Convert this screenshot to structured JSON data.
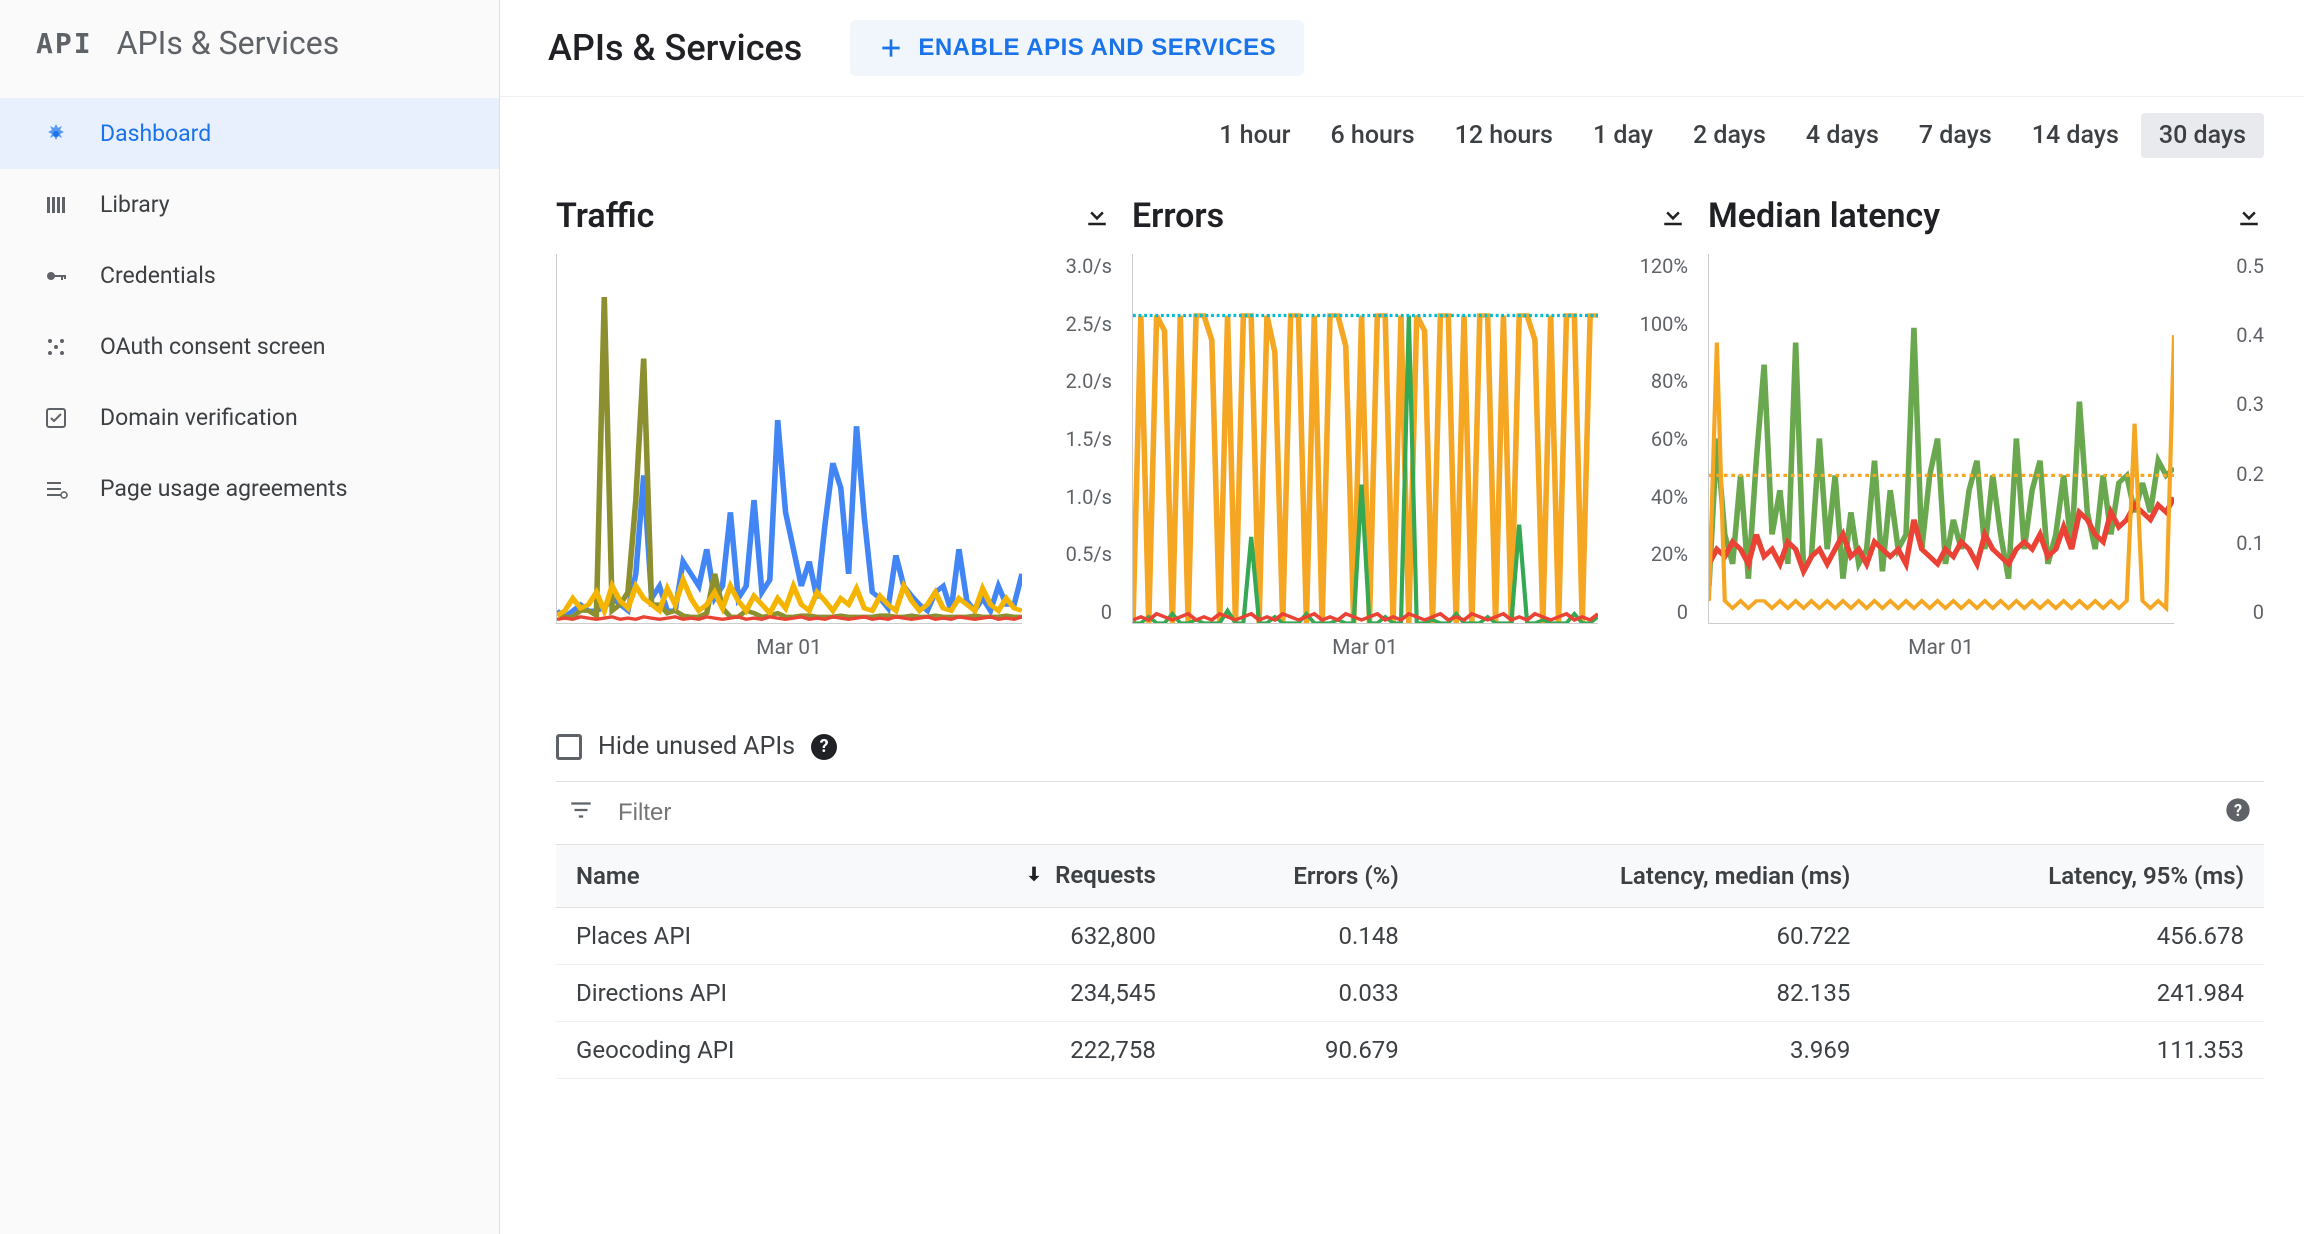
{
  "sidebar": {
    "logo_text": "API",
    "header_title": "APIs & Services",
    "items": [
      {
        "label": "Dashboard",
        "icon": "dashboard",
        "active": true
      },
      {
        "label": "Library",
        "icon": "library",
        "active": false
      },
      {
        "label": "Credentials",
        "icon": "key",
        "active": false
      },
      {
        "label": "OAuth consent screen",
        "icon": "consent",
        "active": false
      },
      {
        "label": "Domain verification",
        "icon": "check",
        "active": false
      },
      {
        "label": "Page usage agreements",
        "icon": "settings",
        "active": false
      }
    ]
  },
  "header": {
    "title": "APIs & Services",
    "enable_button": "ENABLE APIS AND SERVICES"
  },
  "time_ranges": {
    "options": [
      "1 hour",
      "6 hours",
      "12 hours",
      "1 day",
      "2 days",
      "4 days",
      "7 days",
      "14 days",
      "30 days"
    ],
    "selected": "30 days"
  },
  "charts": {
    "xlabel": "Mar 01",
    "traffic": {
      "title": "Traffic",
      "type": "line",
      "y_ticks": [
        "3.0/s",
        "2.5/s",
        "2.0/s",
        "1.5/s",
        "1.0/s",
        "0.5/s",
        "0"
      ],
      "y_max": 3.0,
      "series": [
        {
          "name": "blue",
          "color": "#4285f4",
          "stroke_width": 2,
          "values": [
            0.1,
            0.05,
            0.1,
            0.15,
            0.1,
            0.1,
            0.12,
            0.2,
            0.15,
            0.1,
            0.4,
            1.2,
            0.2,
            0.3,
            0.1,
            0.1,
            0.5,
            0.4,
            0.3,
            0.6,
            0.2,
            0.3,
            0.9,
            0.2,
            0.3,
            1.0,
            0.25,
            0.35,
            1.65,
            0.9,
            0.6,
            0.3,
            0.5,
            0.2,
            0.8,
            1.3,
            1.1,
            0.4,
            1.6,
            0.85,
            0.25,
            0.2,
            0.12,
            0.55,
            0.3,
            0.22,
            0.15,
            0.1,
            0.25,
            0.3,
            0.1,
            0.6,
            0.18,
            0.1,
            0.2,
            0.1,
            0.3,
            0.15,
            0.15,
            0.4
          ]
        },
        {
          "name": "olive",
          "color": "#8b8f2f",
          "stroke_width": 2,
          "values": [
            0.08,
            0.05,
            0.05,
            0.1,
            0.1,
            0.06,
            2.65,
            0.1,
            0.15,
            0.25,
            1.0,
            2.15,
            0.15,
            0.15,
            0.08,
            0.1,
            0.06,
            0.05,
            0.05,
            0.08,
            0.4,
            0.12,
            0.05,
            0.05,
            0.1,
            0.08,
            0.05,
            0.06,
            0.08,
            0.05,
            0.05,
            0.06,
            0.06,
            0.05,
            0.05,
            0.05,
            0.06,
            0.05,
            0.05,
            0.05,
            0.05,
            0.06,
            0.06,
            0.05,
            0.05,
            0.06,
            0.05,
            0.05,
            0.06,
            0.05,
            0.05,
            0.05,
            0.05,
            0.06,
            0.05,
            0.05,
            0.05,
            0.06,
            0.05,
            0.05
          ]
        },
        {
          "name": "orange",
          "color": "#f4b400",
          "stroke_width": 2,
          "values": [
            0.06,
            0.1,
            0.2,
            0.12,
            0.15,
            0.25,
            0.1,
            0.3,
            0.18,
            0.12,
            0.3,
            0.2,
            0.15,
            0.1,
            0.28,
            0.15,
            0.35,
            0.2,
            0.1,
            0.15,
            0.25,
            0.12,
            0.3,
            0.18,
            0.1,
            0.22,
            0.15,
            0.08,
            0.2,
            0.12,
            0.3,
            0.15,
            0.1,
            0.25,
            0.18,
            0.1,
            0.2,
            0.15,
            0.28,
            0.12,
            0.1,
            0.22,
            0.15,
            0.1,
            0.3,
            0.18,
            0.1,
            0.15,
            0.25,
            0.12,
            0.1,
            0.2,
            0.15,
            0.1,
            0.28,
            0.15,
            0.1,
            0.2,
            0.12,
            0.1
          ]
        },
        {
          "name": "red",
          "color": "#ea4335",
          "stroke_width": 1.5,
          "values": [
            0.03,
            0.04,
            0.03,
            0.05,
            0.04,
            0.03,
            0.04,
            0.05,
            0.03,
            0.04,
            0.03,
            0.05,
            0.04,
            0.03,
            0.04,
            0.05,
            0.03,
            0.04,
            0.03,
            0.05,
            0.04,
            0.03,
            0.04,
            0.05,
            0.03,
            0.04,
            0.03,
            0.05,
            0.04,
            0.03,
            0.04,
            0.05,
            0.03,
            0.04,
            0.03,
            0.05,
            0.04,
            0.03,
            0.04,
            0.05,
            0.03,
            0.04,
            0.03,
            0.05,
            0.04,
            0.03,
            0.04,
            0.05,
            0.03,
            0.04,
            0.03,
            0.05,
            0.04,
            0.03,
            0.04,
            0.05,
            0.03,
            0.04,
            0.03,
            0.05
          ]
        }
      ]
    },
    "errors": {
      "title": "Errors",
      "type": "line",
      "y_ticks": [
        "120%",
        "100%",
        "80%",
        "60%",
        "40%",
        "20%",
        "0"
      ],
      "y_max": 120,
      "series": [
        {
          "name": "orange",
          "color": "#f5a623",
          "stroke_width": 2,
          "values": [
            0,
            100,
            0,
            100,
            95,
            0,
            100,
            0,
            100,
            100,
            92,
            0,
            100,
            0,
            100,
            100,
            0,
            100,
            88,
            0,
            100,
            100,
            0,
            100,
            0,
            100,
            100,
            90,
            0,
            100,
            0,
            100,
            100,
            0,
            100,
            0,
            100,
            95,
            0,
            100,
            100,
            0,
            100,
            0,
            100,
            100,
            0,
            100,
            0,
            100,
            100,
            92,
            0,
            100,
            0,
            100,
            100,
            0,
            100,
            100
          ]
        },
        {
          "name": "green",
          "color": "#34a853",
          "stroke_width": 1.5,
          "values": [
            0,
            0,
            2,
            0,
            0,
            3,
            0,
            0,
            1,
            0,
            0,
            0,
            4,
            0,
            0,
            28,
            0,
            0,
            2,
            0,
            0,
            0,
            3,
            0,
            0,
            0,
            1,
            0,
            0,
            45,
            0,
            0,
            2,
            0,
            0,
            100,
            0,
            0,
            1,
            0,
            0,
            3,
            0,
            0,
            0,
            2,
            0,
            0,
            0,
            32,
            0,
            0,
            1,
            0,
            0,
            0,
            3,
            0,
            0,
            2
          ]
        },
        {
          "name": "red",
          "color": "#ea4335",
          "stroke_width": 1.5,
          "values": [
            1,
            2,
            1,
            3,
            2,
            1,
            2,
            3,
            1,
            2,
            1,
            3,
            2,
            1,
            2,
            3,
            1,
            2,
            1,
            3,
            2,
            1,
            2,
            3,
            1,
            2,
            1,
            3,
            2,
            1,
            2,
            3,
            1,
            2,
            1,
            3,
            2,
            1,
            2,
            3,
            1,
            2,
            1,
            3,
            2,
            1,
            2,
            3,
            1,
            2,
            1,
            3,
            2,
            1,
            2,
            3,
            1,
            2,
            1,
            3
          ]
        },
        {
          "name": "teal-dash",
          "color": "#00bcd4",
          "stroke_width": 1.5,
          "dash": "6 6",
          "values": [
            100,
            100,
            100,
            100,
            100,
            100,
            100,
            100,
            100,
            100,
            100,
            100,
            100,
            100,
            100,
            100,
            100,
            100,
            100,
            100,
            100,
            100,
            100,
            100,
            100,
            100,
            100,
            100,
            100,
            100,
            100,
            100,
            100,
            100,
            100,
            100,
            100,
            100,
            100,
            100,
            100,
            100,
            100,
            100,
            100,
            100,
            100,
            100,
            100,
            100,
            100,
            100,
            100,
            100,
            100,
            100,
            100,
            100,
            100,
            100
          ]
        }
      ]
    },
    "latency": {
      "title": "Median latency",
      "type": "line",
      "y_ticks": [
        "0.5",
        "0.4",
        "0.3",
        "0.2",
        "0.1",
        "0"
      ],
      "y_max": 0.5,
      "series": [
        {
          "name": "green",
          "color": "#6aa84f",
          "stroke_width": 2,
          "values": [
            0.05,
            0.25,
            0.12,
            0.08,
            0.2,
            0.06,
            0.22,
            0.35,
            0.12,
            0.18,
            0.08,
            0.38,
            0.07,
            0.09,
            0.25,
            0.1,
            0.2,
            0.06,
            0.15,
            0.08,
            0.1,
            0.22,
            0.07,
            0.18,
            0.1,
            0.12,
            0.4,
            0.1,
            0.2,
            0.25,
            0.08,
            0.14,
            0.1,
            0.18,
            0.22,
            0.1,
            0.2,
            0.12,
            0.06,
            0.25,
            0.1,
            0.18,
            0.22,
            0.08,
            0.12,
            0.2,
            0.1,
            0.3,
            0.15,
            0.1,
            0.2,
            0.12,
            0.19,
            0.2,
            0.15,
            0.19,
            0.15,
            0.22,
            0.2,
            0.21
          ]
        },
        {
          "name": "red",
          "color": "#ea4335",
          "stroke_width": 2,
          "values": [
            0.08,
            0.1,
            0.09,
            0.11,
            0.1,
            0.08,
            0.12,
            0.09,
            0.1,
            0.08,
            0.11,
            0.1,
            0.07,
            0.09,
            0.1,
            0.08,
            0.1,
            0.12,
            0.09,
            0.1,
            0.08,
            0.11,
            0.1,
            0.09,
            0.1,
            0.08,
            0.14,
            0.1,
            0.09,
            0.08,
            0.1,
            0.09,
            0.11,
            0.1,
            0.08,
            0.12,
            0.1,
            0.09,
            0.08,
            0.1,
            0.11,
            0.1,
            0.12,
            0.09,
            0.1,
            0.13,
            0.1,
            0.15,
            0.14,
            0.12,
            0.11,
            0.15,
            0.13,
            0.14,
            0.16,
            0.15,
            0.14,
            0.16,
            0.15,
            0.17
          ]
        },
        {
          "name": "orange",
          "color": "#f5a623",
          "stroke_width": 1.5,
          "values": [
            0.03,
            0.38,
            0.03,
            0.02,
            0.03,
            0.02,
            0.03,
            0.03,
            0.02,
            0.03,
            0.02,
            0.03,
            0.02,
            0.03,
            0.02,
            0.03,
            0.02,
            0.03,
            0.02,
            0.03,
            0.02,
            0.03,
            0.02,
            0.03,
            0.02,
            0.03,
            0.02,
            0.03,
            0.02,
            0.03,
            0.02,
            0.03,
            0.02,
            0.03,
            0.02,
            0.03,
            0.02,
            0.03,
            0.02,
            0.03,
            0.02,
            0.03,
            0.02,
            0.03,
            0.02,
            0.03,
            0.02,
            0.03,
            0.02,
            0.03,
            0.02,
            0.03,
            0.02,
            0.03,
            0.27,
            0.03,
            0.02,
            0.03,
            0.02,
            0.39
          ]
        },
        {
          "name": "orange-dash",
          "color": "#f5a623",
          "stroke_width": 1.5,
          "dash": "8 8",
          "values": [
            0.2,
            0.2,
            0.2,
            0.2,
            0.2,
            0.2,
            0.2,
            0.2,
            0.2,
            0.2,
            0.2,
            0.2,
            0.2,
            0.2,
            0.2,
            0.2,
            0.2,
            0.2,
            0.2,
            0.2,
            0.2,
            0.2,
            0.2,
            0.2,
            0.2,
            0.2,
            0.2,
            0.2,
            0.2,
            0.2,
            0.2,
            0.2,
            0.2,
            0.2,
            0.2,
            0.2,
            0.2,
            0.2,
            0.2,
            0.2,
            0.2,
            0.2,
            0.2,
            0.2,
            0.2,
            0.2,
            0.2,
            0.2,
            0.2,
            0.2,
            0.2,
            0.2,
            0.2,
            0.2,
            0.2,
            0.2,
            0.2,
            0.2,
            0.2,
            0.2
          ]
        }
      ]
    }
  },
  "hide_unused": {
    "label": "Hide unused APIs",
    "checked": false
  },
  "filter": {
    "placeholder": "Filter"
  },
  "table": {
    "columns": [
      "Name",
      "Requests",
      "Errors (%)",
      "Latency, median (ms)",
      "Latency, 95% (ms)"
    ],
    "sort_column_index": 1,
    "sort_direction": "desc",
    "rows": [
      [
        "Places API",
        "632,800",
        "0.148",
        "60.722",
        "456.678"
      ],
      [
        "Directions API",
        "234,545",
        "0.033",
        "82.135",
        "241.984"
      ],
      [
        "Geocoding API",
        "222,758",
        "90.679",
        "3.969",
        "111.353"
      ]
    ]
  },
  "colors": {
    "accent": "#1a73e8",
    "text": "#3c4043",
    "muted": "#5f6368",
    "border": "#e0e0e0",
    "sidebar_bg": "#fafafa",
    "selected_bg": "#e8f0fe",
    "chip_bg": "#e8eaed"
  }
}
